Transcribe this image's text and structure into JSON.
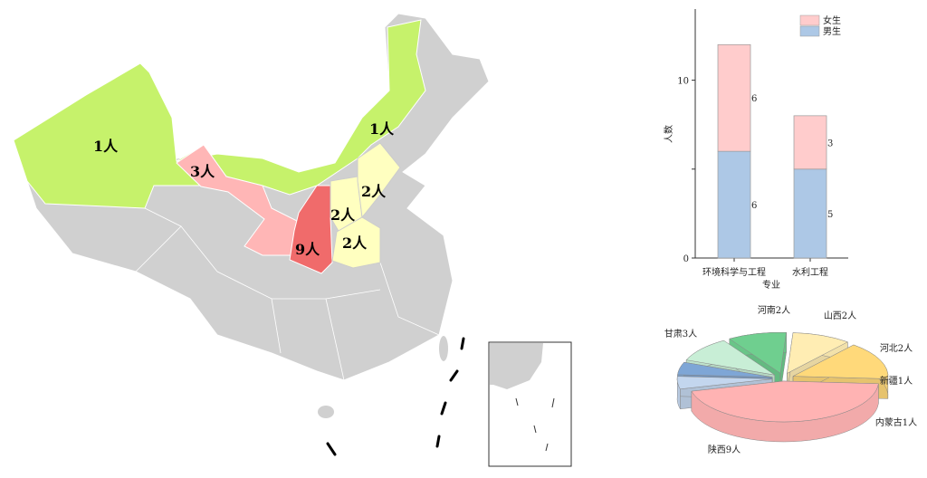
{
  "map": {
    "labels": [
      {
        "province": "新疆",
        "text": "1人"
      },
      {
        "province": "内蒙古",
        "text": "1人"
      },
      {
        "province": "甘肃",
        "text": "3人"
      },
      {
        "province": "陕西",
        "text": "9人"
      },
      {
        "province": "山西",
        "text": "2人"
      },
      {
        "province": "河北",
        "text": "2人"
      },
      {
        "province": "河南",
        "text": "2人"
      }
    ],
    "colors": {
      "one": "#c6f26b",
      "three": "#ffb6b6",
      "nine": "#f06b6b",
      "two": "#ffffc0",
      "other": "#d0d0d0"
    }
  },
  "chart_data": [
    {
      "type": "bar",
      "stacked": true,
      "categories": [
        "环境科学与工程",
        "水利工程"
      ],
      "series": [
        {
          "name": "男生",
          "values": [
            6,
            5
          ],
          "color": "#adc8e6"
        },
        {
          "name": "女生",
          "values": [
            6,
            3
          ],
          "color": "#ffcccc"
        }
      ],
      "xlabel": "专业",
      "ylabel": "人数",
      "yticks": [
        "0",
        "10"
      ],
      "ylim": [
        0,
        14
      ],
      "legend": "top-right"
    },
    {
      "type": "pie",
      "style": "3d-exploded",
      "slices": [
        {
          "label": "陕西9人",
          "value": 9,
          "color": "#ffb3b3"
        },
        {
          "label": "甘肃3人",
          "value": 3,
          "color": "#ffd97a"
        },
        {
          "label": "河南2人",
          "value": 2,
          "color": "#ffedb3"
        },
        {
          "label": "山西2人",
          "value": 2,
          "color": "#6fcf8f"
        },
        {
          "label": "河北2人",
          "value": 2,
          "color": "#c8eed6"
        },
        {
          "label": "新疆1人",
          "value": 1,
          "color": "#7ea6d6"
        },
        {
          "label": "内蒙古1人",
          "value": 1,
          "color": "#c3d6ee"
        }
      ]
    }
  ]
}
